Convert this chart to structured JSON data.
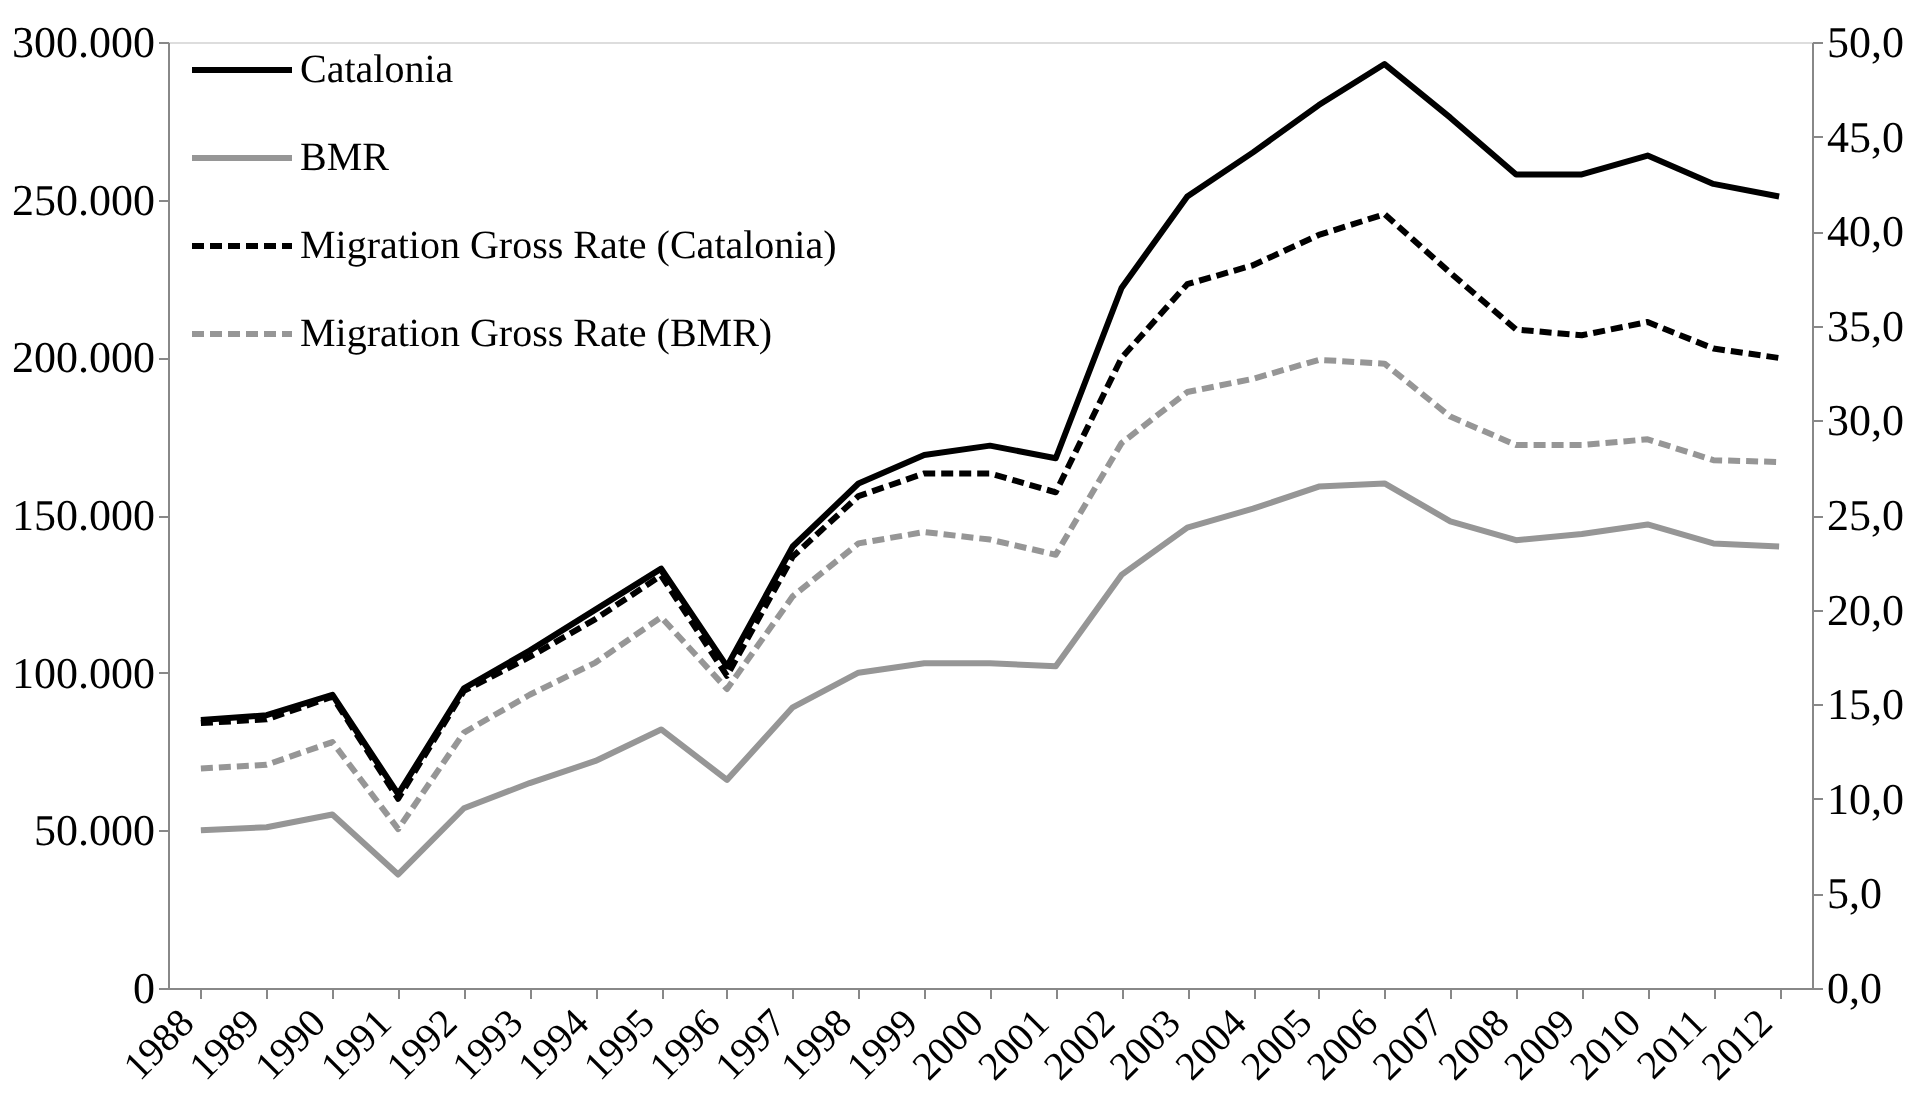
{
  "chart_data": {
    "type": "line",
    "categories": [
      "1988",
      "1989",
      "1990",
      "1991",
      "1992",
      "1993",
      "1994",
      "1995",
      "1996",
      "1997",
      "1998",
      "1999",
      "2000",
      "2001",
      "2002",
      "2003",
      "2004",
      "2005",
      "2006",
      "2007",
      "2008",
      "2009",
      "2010",
      "2011",
      "2012"
    ],
    "series": [
      {
        "name": "Catalonia",
        "color": "#000000",
        "line_style": "solid",
        "axis": "y",
        "values": [
          85000,
          86500,
          93000,
          61500,
          95000,
          107000,
          120000,
          133000,
          102000,
          140000,
          160000,
          169000,
          172000,
          168000,
          222000,
          251000,
          265000,
          280000,
          293000,
          276000,
          258000,
          258000,
          264000,
          255000,
          251000
        ]
      },
      {
        "name": "BMR",
        "color": "#969696",
        "line_style": "solid",
        "axis": "y",
        "values": [
          50000,
          51000,
          55000,
          36000,
          57000,
          65000,
          72000,
          82000,
          66000,
          89000,
          100000,
          103000,
          103000,
          102000,
          131000,
          146000,
          152000,
          159000,
          160000,
          148000,
          142000,
          144000,
          147000,
          141000,
          140000
        ]
      },
      {
        "name": "Migration Gross Rate (Catalonia)",
        "color": "#000000",
        "line_style": "dashed",
        "axis": "y2",
        "values": [
          14.0,
          14.2,
          15.4,
          10.0,
          15.7,
          17.5,
          19.5,
          21.8,
          16.5,
          22.8,
          26.0,
          27.2,
          27.2,
          26.2,
          33.3,
          37.2,
          38.2,
          39.8,
          40.9,
          37.8,
          34.8,
          34.5,
          35.2,
          33.8,
          33.3
        ]
      },
      {
        "name": "Migration Gross Rate (BMR)",
        "color": "#969696",
        "line_style": "dashed",
        "axis": "y2",
        "values": [
          11.6,
          11.8,
          13.0,
          8.4,
          13.5,
          15.5,
          17.2,
          19.6,
          15.8,
          20.7,
          23.5,
          24.1,
          23.7,
          22.9,
          28.8,
          31.5,
          32.2,
          33.2,
          33.0,
          30.2,
          28.7,
          28.7,
          29.0,
          27.9,
          27.8
        ]
      }
    ],
    "ylim": [
      0,
      300000
    ],
    "yticks": [
      {
        "value": 0,
        "label": "0"
      },
      {
        "value": 50000,
        "label": "50.000"
      },
      {
        "value": 100000,
        "label": "100.000"
      },
      {
        "value": 150000,
        "label": "150.000"
      },
      {
        "value": 200000,
        "label": "200.000"
      },
      {
        "value": 250000,
        "label": "250.000"
      },
      {
        "value": 300000,
        "label": "300.000"
      }
    ],
    "y2lim": [
      0,
      50
    ],
    "y2ticks": [
      {
        "value": 0,
        "label": "0,0"
      },
      {
        "value": 5,
        "label": "5,0"
      },
      {
        "value": 10,
        "label": "10,0"
      },
      {
        "value": 15,
        "label": "15,0"
      },
      {
        "value": 20,
        "label": "20,0"
      },
      {
        "value": 25,
        "label": "25,0"
      },
      {
        "value": 30,
        "label": "30,0"
      },
      {
        "value": 35,
        "label": "35,0"
      },
      {
        "value": 40,
        "label": "40,0"
      },
      {
        "value": 45,
        "label": "45,0"
      },
      {
        "value": 50,
        "label": "50,0"
      }
    ],
    "grid": false,
    "legend": "top left"
  }
}
